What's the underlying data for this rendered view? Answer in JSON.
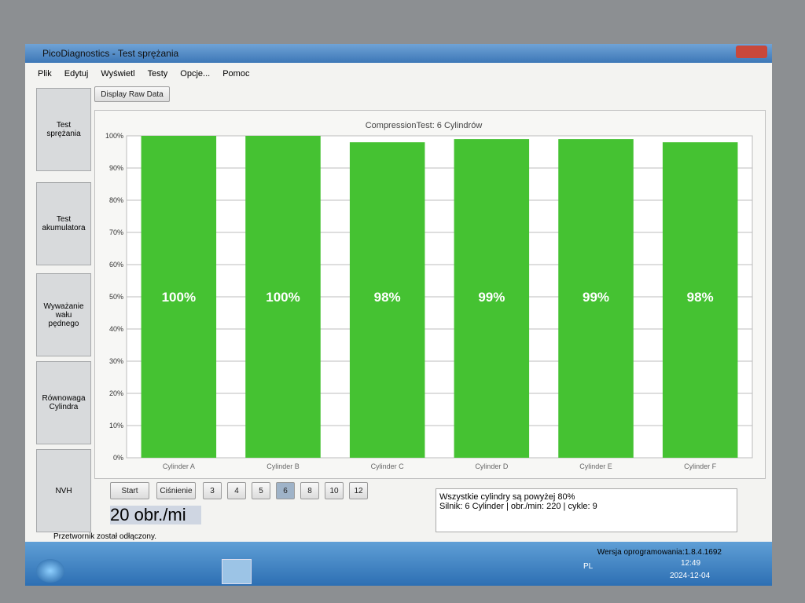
{
  "window": {
    "title": "PicoDiagnostics - Test sprężania",
    "menu": [
      "Plik",
      "Edytuj",
      "Wyświetl",
      "Testy",
      "Opcje...",
      "Pomoc"
    ],
    "toolbar_button": "Display Raw Data",
    "sidebar": [
      "Test sprężania",
      "Test akumulatora",
      "Wyważanie wału pędnego",
      "Równowaga Cylindra",
      "NVH"
    ],
    "buttons": [
      "Start",
      "Ciśnienie",
      "3",
      "4",
      "5",
      "6",
      "8",
      "10",
      "12"
    ],
    "rpm_field": "20 obr./mi",
    "info": [
      "Wszystkie cylindry są powyżej 80%",
      "Silnik: 6 Cylinder | obr./min: 220 | cykle: 9"
    ],
    "status": "Przetwornik został odłączony.",
    "version": "Wersja oprogramowania:1.8.4.1692"
  },
  "taskbar": {
    "language": "PL",
    "time": "12:49",
    "date": "2024-12-04"
  },
  "chart_data": {
    "type": "bar",
    "title": "CompressionTest: 6 Cylindrów",
    "categories": [
      "Cylinder A",
      "Cylinder B",
      "Cylinder C",
      "Cylinder D",
      "Cylinder E",
      "Cylinder F"
    ],
    "values": [
      100,
      100,
      98,
      99,
      99,
      98
    ],
    "value_labels": [
      "100%",
      "100%",
      "98%",
      "99%",
      "99%",
      "98%"
    ],
    "color": "#45c232",
    "ylim": [
      0,
      100
    ],
    "yticks": [
      {
        "value": 0,
        "label": "0%"
      },
      {
        "value": 10,
        "label": "10%"
      },
      {
        "value": 20,
        "label": "20%"
      },
      {
        "value": 30,
        "label": "30%"
      },
      {
        "value": 40,
        "label": "40%"
      },
      {
        "value": 50,
        "label": "50%"
      },
      {
        "value": 60,
        "label": "60%"
      },
      {
        "value": 70,
        "label": "70%"
      },
      {
        "value": 80,
        "label": "80%"
      },
      {
        "value": 90,
        "label": "90%"
      },
      {
        "value": 100,
        "label": "100%"
      }
    ],
    "grid": true
  }
}
